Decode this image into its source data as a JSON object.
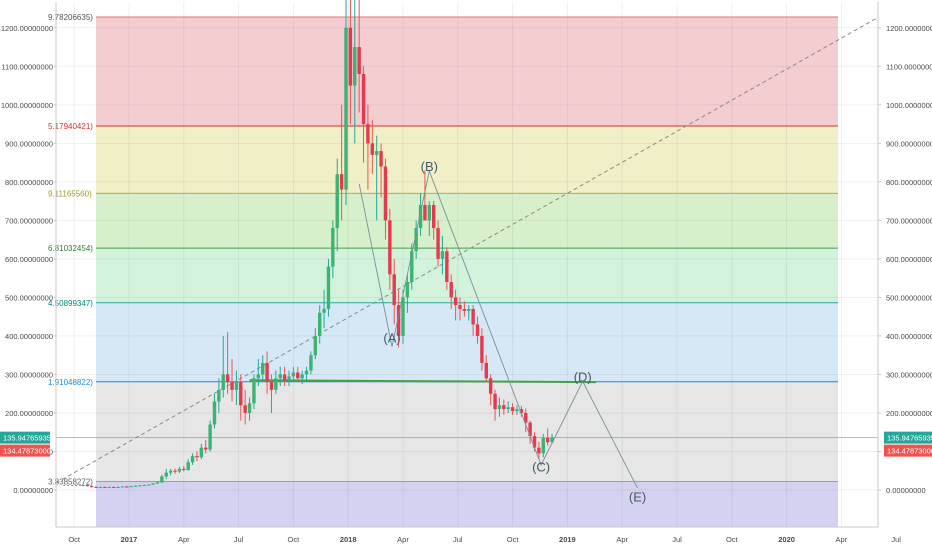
{
  "chart_data": {
    "type": "candlestick",
    "title": "",
    "y_axis_ticks": [
      "0.00000000",
      "100.00000000",
      "200.00000000",
      "300.00000000",
      "400.00000000",
      "500.00000000",
      "600.00000000",
      "700.00000000",
      "800.00000000",
      "900.00000000",
      "1000.00000000",
      "1100.00000000",
      "1200.00000000"
    ],
    "x_axis_ticks": [
      "Oct",
      "2017",
      "Apr",
      "Jul",
      "Oct",
      "2018",
      "Apr",
      "Jul",
      "Oct",
      "2019",
      "Apr",
      "Jul",
      "Oct",
      "2020",
      "Apr",
      "Jul"
    ],
    "ylim": [
      -130,
      1285
    ],
    "xlim": [
      2016.667,
      2020.417
    ],
    "fib_levels": [
      {
        "label": "9.78206635)",
        "value": 1228,
        "line_color": "#e57373",
        "fill_color": "#f4cdd1",
        "text_color": "#555555"
      },
      {
        "label": "5.17940421)",
        "value": 945,
        "line_color": "#d32f2f",
        "fill_color": "#f1efc7",
        "text_color": "#d32f2f"
      },
      {
        "label": "9.11165560)",
        "value": 770,
        "line_color": "#afb42b",
        "fill_color": "#d7f0cb",
        "text_color": "#9e9d24"
      },
      {
        "label": "6.81032454)",
        "value": 628,
        "line_color": "#43a047",
        "fill_color": "#d3f2dc",
        "text_color": "#2e7d32"
      },
      {
        "label": "4.50899347)",
        "value": 486,
        "line_color": "#26a69a",
        "fill_color": "#d6e8f5",
        "text_color": "#00897b"
      },
      {
        "label": "1.91048822)",
        "value": 281,
        "line_color": "#1e88e5",
        "fill_color": "#e6e6e6",
        "text_color": "#1e88e5"
      },
      {
        "label": "3.83858272)",
        "value": 22,
        "line_color": "#9e9e9e",
        "fill_color": "#d4d2f0",
        "text_color": "#616161"
      }
    ],
    "wave_labels": [
      {
        "label": "(A)",
        "x": 2018.2,
        "y": 383
      },
      {
        "label": "(B)",
        "x": 2018.37,
        "y": 828
      },
      {
        "label": "(C)",
        "x": 2018.88,
        "y": 48
      },
      {
        "label": "(D)",
        "x": 2019.07,
        "y": 282
      },
      {
        "label": "(E)",
        "x": 2019.32,
        "y": -30
      }
    ],
    "wave_path": [
      [
        2018.05,
        795
      ],
      [
        2018.2,
        372
      ],
      [
        2018.37,
        828
      ],
      [
        2018.88,
        65
      ],
      [
        2019.07,
        282
      ],
      [
        2019.32,
        5
      ]
    ],
    "trend_line": {
      "from": [
        2016.667,
        18
      ],
      "to": [
        2020.42,
        1228
      ]
    },
    "horizontal_segment": {
      "from": [
        2017.55,
        285
      ],
      "to": [
        2019.13,
        280
      ],
      "color": "#43a047"
    },
    "current_price": {
      "value": 135.94765935,
      "label": "135.94765935",
      "color": "#26a69a"
    },
    "prior_price": {
      "value": 134.47873,
      "label": "134.47873000",
      "color": "#ef5350"
    },
    "candles": [
      {
        "x": 2016.79,
        "o": 12,
        "h": 16,
        "l": 10,
        "c": 13
      },
      {
        "x": 2016.81,
        "o": 13,
        "h": 15,
        "l": 9,
        "c": 10
      },
      {
        "x": 2016.83,
        "o": 10,
        "h": 12,
        "l": 6,
        "c": 8
      },
      {
        "x": 2016.85,
        "o": 8,
        "h": 10,
        "l": 5,
        "c": 7
      },
      {
        "x": 2016.87,
        "o": 7,
        "h": 9,
        "l": 5,
        "c": 8
      },
      {
        "x": 2016.89,
        "o": 8,
        "h": 9,
        "l": 6,
        "c": 7
      },
      {
        "x": 2016.91,
        "o": 7,
        "h": 9,
        "l": 6,
        "c": 8
      },
      {
        "x": 2016.93,
        "o": 8,
        "h": 9,
        "l": 6,
        "c": 7
      },
      {
        "x": 2016.95,
        "o": 7,
        "h": 9,
        "l": 6,
        "c": 8
      },
      {
        "x": 2016.97,
        "o": 8,
        "h": 10,
        "l": 7,
        "c": 9
      },
      {
        "x": 2016.99,
        "o": 9,
        "h": 11,
        "l": 7,
        "c": 8
      },
      {
        "x": 2017.01,
        "o": 8,
        "h": 11,
        "l": 8,
        "c": 10
      },
      {
        "x": 2017.03,
        "o": 10,
        "h": 12,
        "l": 9,
        "c": 11
      },
      {
        "x": 2017.05,
        "o": 11,
        "h": 13,
        "l": 10,
        "c": 12
      },
      {
        "x": 2017.07,
        "o": 12,
        "h": 14,
        "l": 11,
        "c": 13
      },
      {
        "x": 2017.09,
        "o": 13,
        "h": 15,
        "l": 12,
        "c": 14
      },
      {
        "x": 2017.11,
        "o": 14,
        "h": 18,
        "l": 13,
        "c": 17
      },
      {
        "x": 2017.13,
        "o": 17,
        "h": 22,
        "l": 16,
        "c": 20
      },
      {
        "x": 2017.15,
        "o": 20,
        "h": 40,
        "l": 18,
        "c": 35
      },
      {
        "x": 2017.17,
        "o": 35,
        "h": 55,
        "l": 28,
        "c": 45
      },
      {
        "x": 2017.19,
        "o": 45,
        "h": 55,
        "l": 38,
        "c": 50
      },
      {
        "x": 2017.21,
        "o": 50,
        "h": 56,
        "l": 42,
        "c": 48
      },
      {
        "x": 2017.23,
        "o": 48,
        "h": 60,
        "l": 44,
        "c": 55
      },
      {
        "x": 2017.25,
        "o": 55,
        "h": 62,
        "l": 48,
        "c": 52
      },
      {
        "x": 2017.27,
        "o": 52,
        "h": 80,
        "l": 50,
        "c": 72
      },
      {
        "x": 2017.29,
        "o": 72,
        "h": 95,
        "l": 65,
        "c": 88
      },
      {
        "x": 2017.31,
        "o": 88,
        "h": 100,
        "l": 75,
        "c": 85
      },
      {
        "x": 2017.33,
        "o": 85,
        "h": 120,
        "l": 80,
        "c": 110
      },
      {
        "x": 2017.35,
        "o": 110,
        "h": 130,
        "l": 95,
        "c": 105
      },
      {
        "x": 2017.37,
        "o": 105,
        "h": 180,
        "l": 100,
        "c": 170
      },
      {
        "x": 2017.39,
        "o": 170,
        "h": 250,
        "l": 160,
        "c": 230
      },
      {
        "x": 2017.41,
        "o": 230,
        "h": 290,
        "l": 200,
        "c": 260
      },
      {
        "x": 2017.43,
        "o": 260,
        "h": 400,
        "l": 240,
        "c": 300
      },
      {
        "x": 2017.45,
        "o": 300,
        "h": 410,
        "l": 250,
        "c": 280
      },
      {
        "x": 2017.47,
        "o": 280,
        "h": 340,
        "l": 230,
        "c": 260
      },
      {
        "x": 2017.49,
        "o": 260,
        "h": 310,
        "l": 220,
        "c": 280
      },
      {
        "x": 2017.51,
        "o": 280,
        "h": 300,
        "l": 180,
        "c": 220
      },
      {
        "x": 2017.53,
        "o": 220,
        "h": 260,
        "l": 170,
        "c": 200
      },
      {
        "x": 2017.55,
        "o": 200,
        "h": 240,
        "l": 180,
        "c": 225
      },
      {
        "x": 2017.57,
        "o": 225,
        "h": 300,
        "l": 210,
        "c": 290
      },
      {
        "x": 2017.59,
        "o": 290,
        "h": 340,
        "l": 270,
        "c": 300
      },
      {
        "x": 2017.61,
        "o": 300,
        "h": 350,
        "l": 280,
        "c": 330
      },
      {
        "x": 2017.63,
        "o": 330,
        "h": 360,
        "l": 250,
        "c": 280
      },
      {
        "x": 2017.65,
        "o": 280,
        "h": 300,
        "l": 200,
        "c": 260
      },
      {
        "x": 2017.67,
        "o": 260,
        "h": 310,
        "l": 250,
        "c": 290
      },
      {
        "x": 2017.69,
        "o": 290,
        "h": 320,
        "l": 270,
        "c": 300
      },
      {
        "x": 2017.71,
        "o": 300,
        "h": 320,
        "l": 270,
        "c": 285
      },
      {
        "x": 2017.73,
        "o": 285,
        "h": 310,
        "l": 270,
        "c": 295
      },
      {
        "x": 2017.75,
        "o": 295,
        "h": 320,
        "l": 280,
        "c": 305
      },
      {
        "x": 2017.77,
        "o": 305,
        "h": 320,
        "l": 280,
        "c": 290
      },
      {
        "x": 2017.79,
        "o": 290,
        "h": 310,
        "l": 275,
        "c": 300
      },
      {
        "x": 2017.81,
        "o": 300,
        "h": 320,
        "l": 285,
        "c": 310
      },
      {
        "x": 2017.83,
        "o": 310,
        "h": 360,
        "l": 300,
        "c": 350
      },
      {
        "x": 2017.85,
        "o": 350,
        "h": 420,
        "l": 340,
        "c": 400
      },
      {
        "x": 2017.87,
        "o": 400,
        "h": 480,
        "l": 380,
        "c": 460
      },
      {
        "x": 2017.89,
        "o": 460,
        "h": 520,
        "l": 420,
        "c": 470
      },
      {
        "x": 2017.91,
        "o": 470,
        "h": 600,
        "l": 450,
        "c": 580
      },
      {
        "x": 2017.93,
        "o": 580,
        "h": 700,
        "l": 550,
        "c": 680
      },
      {
        "x": 2017.95,
        "o": 680,
        "h": 860,
        "l": 620,
        "c": 820
      },
      {
        "x": 2017.97,
        "o": 820,
        "h": 1000,
        "l": 700,
        "c": 780
      },
      {
        "x": 2017.99,
        "o": 780,
        "h": 1300,
        "l": 740,
        "c": 1200
      },
      {
        "x": 2018.01,
        "o": 1200,
        "h": 1400,
        "l": 950,
        "c": 1050
      },
      {
        "x": 2018.03,
        "o": 1050,
        "h": 1300,
        "l": 900,
        "c": 1150
      },
      {
        "x": 2018.05,
        "o": 1150,
        "h": 1280,
        "l": 980,
        "c": 1080
      },
      {
        "x": 2018.07,
        "o": 1080,
        "h": 1100,
        "l": 850,
        "c": 950
      },
      {
        "x": 2018.09,
        "o": 950,
        "h": 1000,
        "l": 780,
        "c": 900
      },
      {
        "x": 2018.11,
        "o": 900,
        "h": 960,
        "l": 820,
        "c": 870
      },
      {
        "x": 2018.13,
        "o": 870,
        "h": 920,
        "l": 700,
        "c": 880
      },
      {
        "x": 2018.15,
        "o": 880,
        "h": 900,
        "l": 760,
        "c": 840
      },
      {
        "x": 2018.17,
        "o": 840,
        "h": 860,
        "l": 650,
        "c": 700
      },
      {
        "x": 2018.19,
        "o": 700,
        "h": 730,
        "l": 520,
        "c": 560
      },
      {
        "x": 2018.21,
        "o": 560,
        "h": 600,
        "l": 430,
        "c": 480
      },
      {
        "x": 2018.23,
        "o": 480,
        "h": 520,
        "l": 370,
        "c": 400
      },
      {
        "x": 2018.25,
        "o": 400,
        "h": 520,
        "l": 380,
        "c": 500
      },
      {
        "x": 2018.27,
        "o": 500,
        "h": 560,
        "l": 460,
        "c": 540
      },
      {
        "x": 2018.29,
        "o": 540,
        "h": 640,
        "l": 520,
        "c": 620
      },
      {
        "x": 2018.31,
        "o": 620,
        "h": 700,
        "l": 600,
        "c": 680
      },
      {
        "x": 2018.33,
        "o": 680,
        "h": 770,
        "l": 660,
        "c": 740
      },
      {
        "x": 2018.35,
        "o": 740,
        "h": 830,
        "l": 700,
        "c": 700
      },
      {
        "x": 2018.37,
        "o": 700,
        "h": 750,
        "l": 660,
        "c": 740
      },
      {
        "x": 2018.39,
        "o": 740,
        "h": 750,
        "l": 650,
        "c": 680
      },
      {
        "x": 2018.41,
        "o": 680,
        "h": 700,
        "l": 580,
        "c": 600
      },
      {
        "x": 2018.43,
        "o": 600,
        "h": 660,
        "l": 560,
        "c": 620
      },
      {
        "x": 2018.45,
        "o": 620,
        "h": 630,
        "l": 520,
        "c": 540
      },
      {
        "x": 2018.47,
        "o": 540,
        "h": 560,
        "l": 470,
        "c": 500
      },
      {
        "x": 2018.49,
        "o": 500,
        "h": 520,
        "l": 440,
        "c": 480
      },
      {
        "x": 2018.51,
        "o": 480,
        "h": 500,
        "l": 440,
        "c": 470
      },
      {
        "x": 2018.53,
        "o": 470,
        "h": 490,
        "l": 450,
        "c": 465
      },
      {
        "x": 2018.55,
        "o": 465,
        "h": 480,
        "l": 440,
        "c": 470
      },
      {
        "x": 2018.57,
        "o": 470,
        "h": 480,
        "l": 400,
        "c": 430
      },
      {
        "x": 2018.59,
        "o": 430,
        "h": 450,
        "l": 380,
        "c": 400
      },
      {
        "x": 2018.61,
        "o": 400,
        "h": 420,
        "l": 310,
        "c": 330
      },
      {
        "x": 2018.63,
        "o": 330,
        "h": 350,
        "l": 280,
        "c": 290
      },
      {
        "x": 2018.65,
        "o": 290,
        "h": 300,
        "l": 220,
        "c": 250
      },
      {
        "x": 2018.67,
        "o": 250,
        "h": 260,
        "l": 180,
        "c": 210
      },
      {
        "x": 2018.69,
        "o": 210,
        "h": 240,
        "l": 190,
        "c": 220
      },
      {
        "x": 2018.71,
        "o": 220,
        "h": 235,
        "l": 195,
        "c": 210
      },
      {
        "x": 2018.73,
        "o": 210,
        "h": 230,
        "l": 200,
        "c": 215
      },
      {
        "x": 2018.75,
        "o": 215,
        "h": 225,
        "l": 195,
        "c": 205
      },
      {
        "x": 2018.77,
        "o": 205,
        "h": 220,
        "l": 195,
        "c": 210
      },
      {
        "x": 2018.79,
        "o": 210,
        "h": 218,
        "l": 190,
        "c": 200
      },
      {
        "x": 2018.81,
        "o": 200,
        "h": 212,
        "l": 150,
        "c": 175
      },
      {
        "x": 2018.83,
        "o": 175,
        "h": 180,
        "l": 120,
        "c": 140
      },
      {
        "x": 2018.85,
        "o": 140,
        "h": 150,
        "l": 100,
        "c": 110
      },
      {
        "x": 2018.87,
        "o": 110,
        "h": 125,
        "l": 82,
        "c": 95
      },
      {
        "x": 2018.89,
        "o": 95,
        "h": 145,
        "l": 85,
        "c": 135
      },
      {
        "x": 2018.91,
        "o": 135,
        "h": 160,
        "l": 115,
        "c": 124
      },
      {
        "x": 2018.93,
        "o": 124,
        "h": 146,
        "l": 120,
        "c": 136
      }
    ]
  }
}
